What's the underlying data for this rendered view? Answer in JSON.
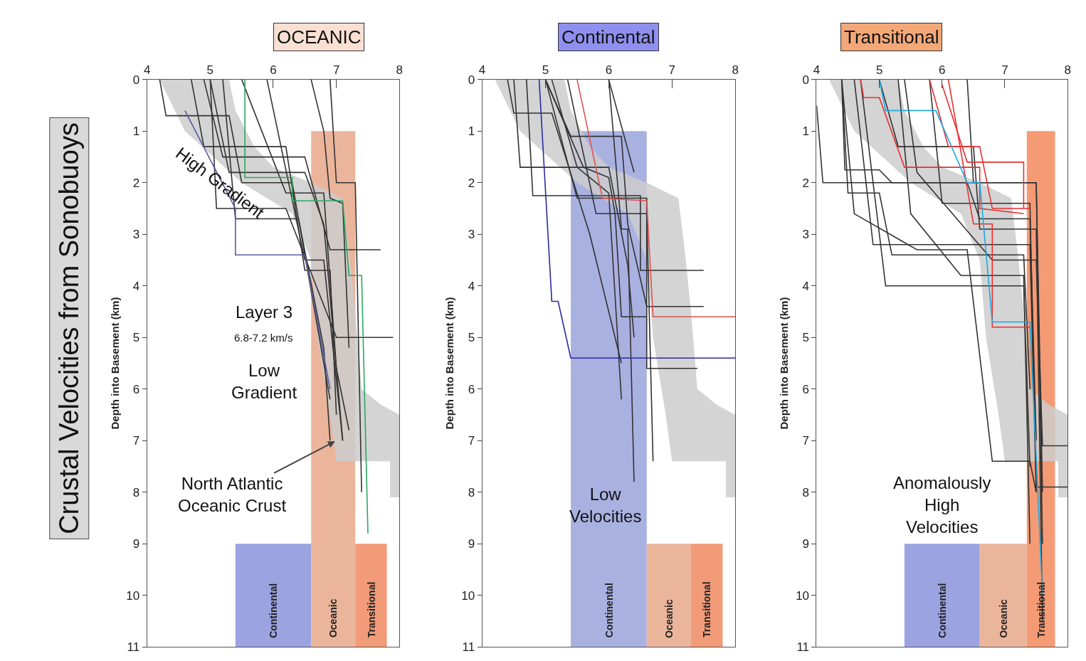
{
  "chart_data": [
    {
      "type": "line",
      "title": "OCEANIC",
      "ylabel": "Depth into Basement (km)",
      "xlim": [
        4,
        8
      ],
      "ylim": [
        11,
        0
      ],
      "xticks": [
        4,
        5,
        6,
        7,
        8
      ],
      "yticks": [
        0,
        1,
        2,
        3,
        4,
        5,
        6,
        7,
        8,
        9,
        10,
        11
      ],
      "annotations": [
        "High Gradient",
        "Layer 3",
        "6.8-7.2 km/s",
        "Low\nGradient",
        {
          "text": "North Atlantic\nOceanic Crust",
          "x": 7.0,
          "y": 7.0
        },
        "Crustal Velocities from Sonobuoys"
      ],
      "series": [
        {
          "type": "area",
          "color": "#cccccc",
          "x": [
            4.2,
            4.6,
            5.5,
            6.3,
            6.6,
            6.7,
            6.9,
            7.0,
            7.85,
            7.85,
            8.0,
            8.0,
            7.7,
            7.4,
            7.3,
            7.2,
            7.1,
            6.6,
            6.0,
            5.7,
            5.4,
            5.3
          ],
          "values": [
            0,
            1,
            2,
            2.6,
            3.5,
            5,
            6.5,
            7.4,
            7.4,
            8.1,
            8.1,
            6.5,
            6.3,
            6.0,
            4.5,
            3.3,
            2.3,
            2.0,
            1.7,
            1.3,
            0.6,
            0
          ]
        },
        {
          "type": "area",
          "name": "Continental",
          "color": "#8a93db",
          "x": [
            5.4,
            5.4,
            6.6,
            6.6
          ],
          "values": [
            11,
            9,
            9,
            11
          ]
        },
        {
          "type": "area",
          "name": "Oceanic",
          "color": "#e8a88a",
          "x": [
            6.6,
            6.6,
            7.3,
            7.3
          ],
          "values": [
            11,
            1,
            1,
            11
          ]
        },
        {
          "type": "area",
          "name": "Transitional",
          "color": "#f08a60",
          "x": [
            7.3,
            7.3,
            7.8,
            7.8
          ],
          "values": [
            11,
            9,
            9,
            11
          ]
        },
        {
          "color": "#333333",
          "x": [
            4.2,
            4.3,
            5.3,
            5.5,
            6.3,
            6.9
          ],
          "values": [
            0,
            0.7,
            0.7,
            2.0,
            2.0,
            6.2
          ]
        },
        {
          "color": "#333333",
          "x": [
            4.9,
            5.2,
            6.5,
            6.9,
            7.7
          ],
          "values": [
            0,
            1.5,
            1.5,
            3.3,
            3.3
          ]
        },
        {
          "color": "#333333",
          "x": [
            5.0,
            5.1,
            6.2,
            7.0,
            7.9
          ],
          "values": [
            0,
            2.5,
            2.5,
            5.0,
            5.0
          ]
        },
        {
          "color": "#333333",
          "x": [
            5.0,
            5.3,
            6.5,
            6.8,
            6.9,
            7.1
          ],
          "values": [
            0,
            1.8,
            1.8,
            2.8,
            4.2,
            7.0
          ]
        },
        {
          "color": "#333333",
          "x": [
            5.5,
            6.2,
            6.8,
            7.0,
            7.2
          ],
          "values": [
            0,
            2.2,
            2.2,
            5.6,
            6.8
          ]
        },
        {
          "color": "#333333",
          "x": [
            5.9,
            6.5,
            6.8,
            7.1
          ],
          "values": [
            0,
            3.5,
            3.5,
            7.0
          ]
        },
        {
          "color": "#333333",
          "x": [
            6.6,
            6.8,
            6.9,
            7.1,
            7.2
          ],
          "values": [
            0,
            1.0,
            2.3,
            2.4,
            5.2
          ]
        },
        {
          "color": "#333333",
          "x": [
            4.7,
            4.9,
            6.2,
            6.5,
            6.9,
            7.0
          ],
          "values": [
            0,
            1.3,
            1.3,
            3.7,
            3.7,
            6.5
          ]
        },
        {
          "color": "#333333",
          "x": [
            6.9,
            7.0,
            7.3,
            7.4
          ],
          "values": [
            0,
            2.0,
            2.0,
            8.0
          ]
        },
        {
          "color": "#333333",
          "x": [
            5.2,
            5.4,
            6.4,
            6.8,
            6.9
          ],
          "values": [
            0,
            2.7,
            2.7,
            5.2,
            7.0
          ]
        },
        {
          "color": "#5a5aa0",
          "x": [
            4.6,
            5.4,
            5.4,
            6.5,
            6.9
          ],
          "values": [
            0.6,
            2.5,
            3.4,
            3.4,
            6.0
          ]
        },
        {
          "color": "#2aa860",
          "x": [
            5.55,
            5.55,
            6.3,
            6.3,
            7.1,
            7.2,
            7.4,
            7.5
          ],
          "values": [
            0,
            1.9,
            1.9,
            2.35,
            2.35,
            3.8,
            3.8,
            8.8
          ]
        }
      ]
    },
    {
      "type": "line",
      "title": "Continental",
      "ylabel": "Depth into Basement (km)",
      "xlim": [
        4,
        8
      ],
      "ylim": [
        11,
        0
      ],
      "xticks": [
        4,
        5,
        6,
        7,
        8
      ],
      "yticks": [
        0,
        1,
        2,
        3,
        4,
        5,
        6,
        7,
        8,
        9,
        10,
        11
      ],
      "annotations": [
        "Low\nVelocities"
      ],
      "series": [
        {
          "type": "area",
          "color": "#cccccc",
          "x": [
            4.2,
            4.6,
            5.5,
            6.3,
            6.6,
            6.7,
            6.9,
            7.0,
            7.85,
            7.85,
            8.0,
            8.0,
            7.7,
            7.4,
            7.3,
            7.2,
            7.1,
            6.6,
            6.0,
            5.7,
            5.4,
            5.3
          ],
          "values": [
            0,
            1,
            2,
            2.6,
            3.5,
            5,
            6.5,
            7.4,
            7.4,
            8.1,
            8.1,
            6.5,
            6.3,
            6.0,
            4.5,
            3.3,
            2.3,
            2.0,
            1.7,
            1.3,
            0.6,
            0
          ]
        },
        {
          "type": "area",
          "name": "Continental",
          "color": "#9aa3dc",
          "x": [
            5.4,
            5.4,
            6.6,
            6.6
          ],
          "values": [
            11,
            1,
            1,
            11
          ]
        },
        {
          "type": "area",
          "name": "Oceanic",
          "color": "#e8a88a",
          "x": [
            6.6,
            6.6,
            7.3,
            7.3
          ],
          "values": [
            11,
            9,
            9,
            11
          ]
        },
        {
          "type": "area",
          "name": "Transitional",
          "color": "#f08a60",
          "x": [
            7.3,
            7.3,
            7.8,
            7.8
          ],
          "values": [
            11,
            9,
            9,
            11
          ]
        },
        {
          "color": "#333333",
          "x": [
            4.4,
            4.5,
            5.1,
            5.7,
            6.2
          ],
          "values": [
            0,
            0.65,
            0.65,
            3.0,
            5.5
          ]
        },
        {
          "color": "#333333",
          "x": [
            4.5,
            4.6,
            6.0,
            6.3,
            6.4
          ],
          "values": [
            0,
            1.7,
            1.7,
            3.6,
            5.0
          ]
        },
        {
          "color": "#333333",
          "x": [
            4.7,
            4.8,
            6.5,
            6.5,
            7.5
          ],
          "values": [
            0,
            2.25,
            2.25,
            3.7,
            3.7
          ]
        },
        {
          "color": "#333333",
          "x": [
            5.0,
            5.4,
            6.2,
            6.3,
            6.6,
            7.5
          ],
          "values": [
            0,
            1.1,
            1.1,
            2.8,
            4.4,
            4.4
          ]
        },
        {
          "color": "#333333",
          "x": [
            5.0,
            5.6,
            6.0,
            6.1,
            6.2,
            6.6
          ],
          "values": [
            0,
            1.7,
            1.9,
            2.6,
            4.6,
            4.6
          ]
        },
        {
          "color": "#333333",
          "x": [
            5.0,
            5.5,
            6.6,
            6.6,
            7.4
          ],
          "values": [
            0,
            2.3,
            2.3,
            5.6,
            5.6
          ]
        },
        {
          "color": "#333333",
          "x": [
            5.35,
            5.8,
            6.6,
            6.7
          ],
          "values": [
            0,
            2.6,
            2.6,
            7.4
          ]
        },
        {
          "color": "#333333",
          "x": [
            6.0,
            6.4
          ],
          "values": [
            0,
            1.8
          ]
        },
        {
          "color": "#333333",
          "x": [
            6.0,
            6.2,
            6.3,
            6.4
          ],
          "values": [
            0,
            2.9,
            2.9,
            7.8
          ]
        },
        {
          "color": "#333333",
          "x": [
            5.1,
            5.5,
            6.0,
            6.2
          ],
          "values": [
            0,
            1.7,
            2.2,
            6.2
          ]
        },
        {
          "color": "#2b2b9e",
          "x": [
            4.9,
            5.1,
            5.2,
            5.4,
            8.0
          ],
          "values": [
            0,
            4.3,
            4.3,
            5.4,
            5.4
          ]
        },
        {
          "color": "#e05050",
          "x": [
            5.5,
            5.9,
            6.6,
            6.7,
            8.0
          ],
          "values": [
            0,
            2.3,
            2.35,
            4.6,
            4.6
          ]
        }
      ]
    },
    {
      "type": "line",
      "title": "Transitional",
      "ylabel": "Depth into Basement (km)",
      "xlim": [
        4,
        8
      ],
      "ylim": [
        11,
        0
      ],
      "xticks": [
        4,
        5,
        6,
        7,
        8
      ],
      "yticks": [
        0,
        1,
        2,
        3,
        4,
        5,
        6,
        7,
        8,
        9,
        10,
        11
      ],
      "annotations": [
        "Anomalously\nHigh\nVelocities"
      ],
      "series": [
        {
          "type": "area",
          "color": "#cccccc",
          "x": [
            4.2,
            4.6,
            5.5,
            6.3,
            6.6,
            6.7,
            6.9,
            7.0,
            7.85,
            7.85,
            8.0,
            8.0,
            7.7,
            7.4,
            7.3,
            7.2,
            7.1,
            6.6,
            6.0,
            5.7,
            5.4,
            5.3
          ],
          "values": [
            0,
            1,
            2,
            2.6,
            3.5,
            5,
            6.5,
            7.4,
            7.4,
            8.1,
            8.1,
            6.5,
            6.3,
            6.0,
            4.5,
            3.3,
            2.3,
            2.0,
            1.7,
            1.3,
            0.6,
            0
          ]
        },
        {
          "type": "area",
          "name": "Continental",
          "color": "#8a93db",
          "x": [
            5.4,
            5.4,
            6.6,
            6.6
          ],
          "values": [
            11,
            9,
            9,
            11
          ]
        },
        {
          "type": "area",
          "name": "Oceanic",
          "color": "#e8a88a",
          "x": [
            6.6,
            6.6,
            7.35,
            7.35
          ],
          "values": [
            11,
            9,
            9,
            11
          ]
        },
        {
          "type": "area",
          "name": "Transitional",
          "color": "#f28a5e",
          "x": [
            7.35,
            7.35,
            7.8,
            7.8
          ],
          "values": [
            11,
            1,
            1,
            11
          ]
        },
        {
          "color": "#333333",
          "x": [
            4.4,
            4.45,
            5.0,
            5.2,
            7.5,
            7.6
          ],
          "values": [
            0,
            1.75,
            1.75,
            2.0,
            2.0,
            8.0
          ]
        },
        {
          "color": "#333333",
          "x": [
            4.0,
            4.1,
            6.4,
            6.6,
            7.4,
            7.5
          ],
          "values": [
            0.5,
            2.0,
            2.0,
            2.7,
            2.7,
            7.0
          ]
        },
        {
          "color": "#333333",
          "x": [
            4.4,
            4.5,
            5.0,
            5.2,
            7.3,
            7.4
          ],
          "values": [
            0,
            2.2,
            2.2,
            3.4,
            3.4,
            6.0
          ]
        },
        {
          "color": "#333333",
          "x": [
            4.6,
            4.9,
            7.4,
            7.5
          ],
          "values": [
            0,
            3.2,
            3.2,
            8.0
          ]
        },
        {
          "color": "#333333",
          "x": [
            4.7,
            5.1,
            7.3,
            7.4
          ],
          "values": [
            0,
            4.0,
            4.0,
            7.5
          ]
        },
        {
          "color": "#333333",
          "x": [
            4.4,
            4.6,
            5.6,
            6.4,
            6.8,
            7.4,
            7.5
          ],
          "values": [
            0,
            2.6,
            3.3,
            3.3,
            7.4,
            7.4,
            8.0
          ]
        },
        {
          "color": "#333333",
          "x": [
            5.0,
            5.3,
            6.5,
            6.6,
            7.5,
            7.6
          ],
          "values": [
            0,
            1.3,
            1.3,
            2.9,
            2.9,
            10.5
          ]
        },
        {
          "color": "#333333",
          "x": [
            5.4,
            5.6,
            6.8,
            7.5,
            7.6,
            8.0
          ],
          "values": [
            0,
            1.8,
            3.5,
            3.5,
            7.1,
            7.1
          ]
        },
        {
          "color": "#333333",
          "x": [
            5.8,
            6.0,
            7.4,
            7.5,
            8.0
          ],
          "values": [
            0,
            2.4,
            2.4,
            7.9,
            7.9
          ]
        },
        {
          "color": "#333333",
          "x": [
            5.3,
            5.5,
            6.3,
            7.3,
            7.4
          ],
          "values": [
            0,
            2.6,
            3.8,
            3.8,
            9.0
          ]
        },
        {
          "color": "#333333",
          "x": [
            6.4,
            6.5,
            7.5,
            7.6
          ],
          "values": [
            0,
            2.0,
            2.0,
            9.0
          ]
        },
        {
          "color": "#e83030",
          "x": [
            4.7,
            4.75,
            5.0,
            5.4,
            6.6,
            6.6,
            7.3
          ],
          "values": [
            0,
            0.35,
            0.35,
            1.7,
            1.7,
            2.5,
            2.6
          ]
        },
        {
          "color": "#e83030",
          "x": [
            5.8,
            6.1,
            6.6,
            6.8,
            7.4
          ],
          "values": [
            0,
            1.3,
            1.3,
            2.5,
            2.5
          ]
        },
        {
          "color": "#e83030",
          "x": [
            6.0,
            6.4,
            7.3,
            7.3
          ],
          "values": [
            0.1,
            1.6,
            1.6,
            2.5
          ]
        },
        {
          "color": "#e83030",
          "x": [
            6.1,
            6.5,
            6.8,
            6.8,
            7.4
          ],
          "values": [
            0,
            2.8,
            2.8,
            4.8,
            4.8
          ]
        },
        {
          "color": "#1ea8e0",
          "x": [
            5.0,
            5.1,
            5.9,
            6.4,
            6.6,
            6.8,
            7.4,
            7.6
          ],
          "values": [
            0,
            0.6,
            0.6,
            2.0,
            2.0,
            4.7,
            4.7,
            10.0
          ]
        }
      ]
    }
  ]
}
